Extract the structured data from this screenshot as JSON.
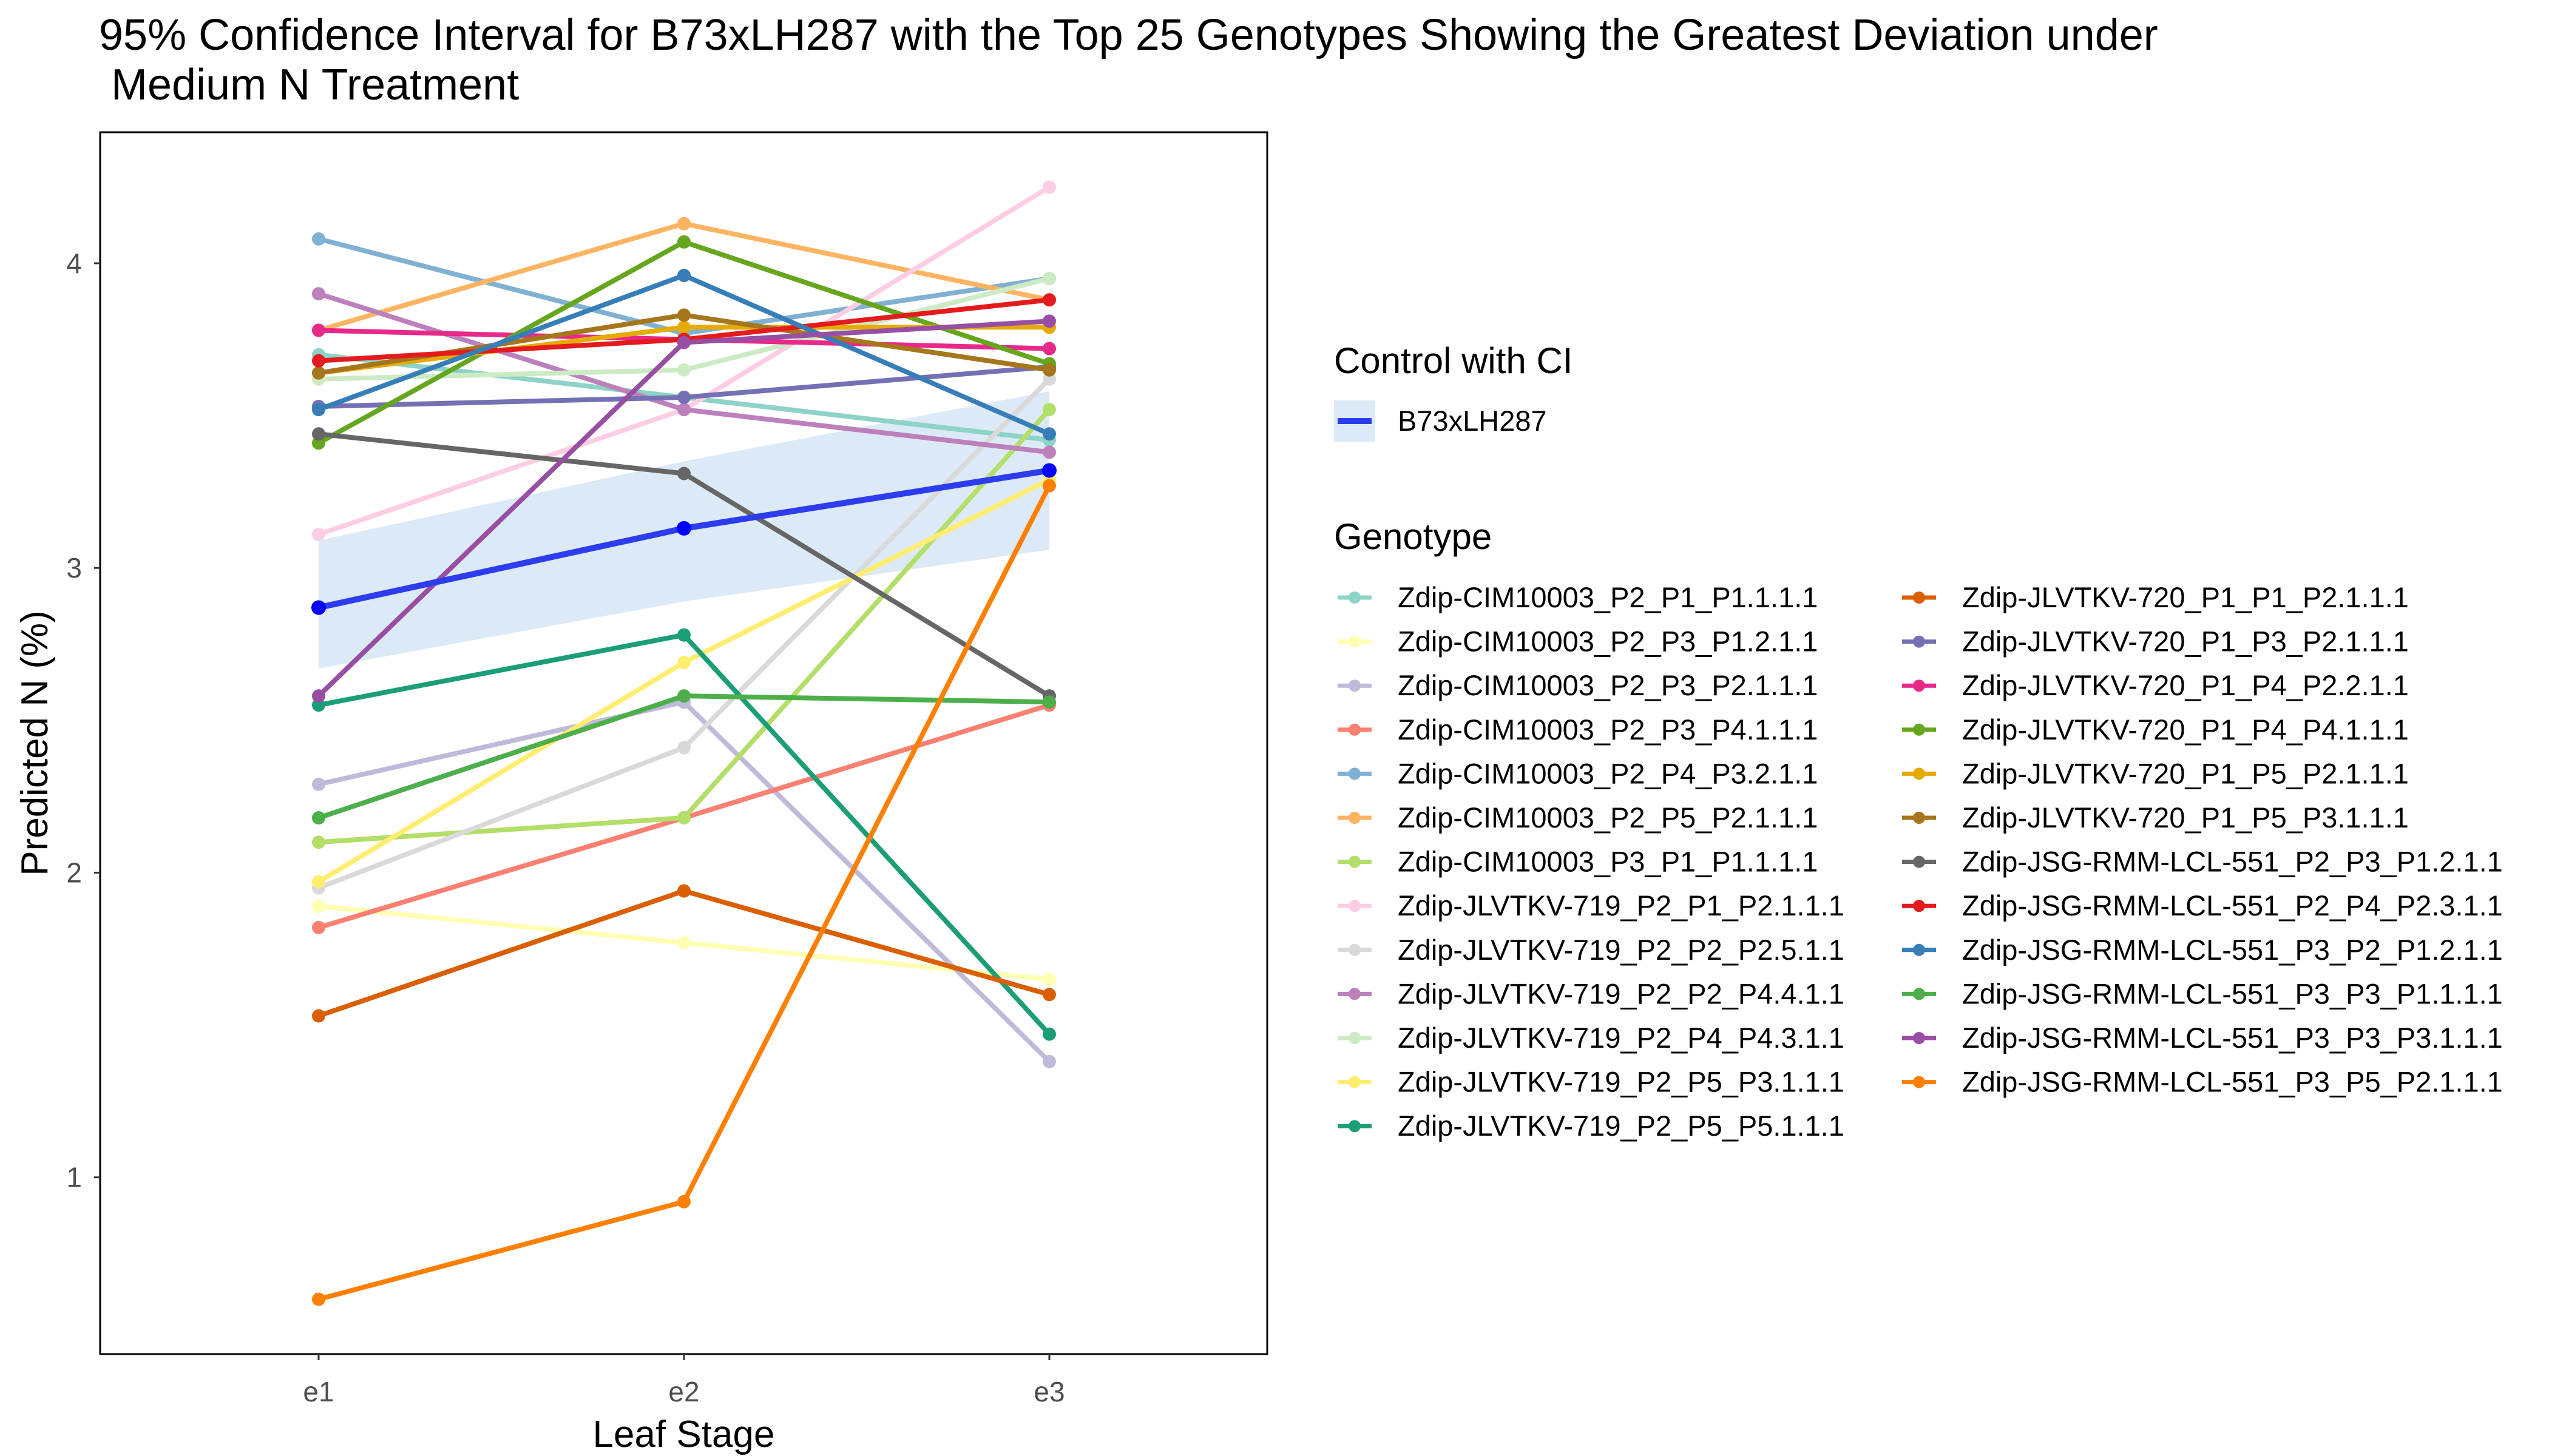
{
  "chart_data": {
    "type": "line",
    "title": "95% Confidence Interval for B73xLH287 with the Top 25 Genotypes Showing the Greatest Deviation under\n Medium N Treatment",
    "xlabel": "Leaf Stage",
    "ylabel": "Predicted N (%)",
    "categories": [
      "e1",
      "e2",
      "e3"
    ],
    "y_ticks": [
      1,
      2,
      3,
      4
    ],
    "ylim": [
      0.42,
      4.43
    ],
    "grid": false,
    "control": {
      "legend_title": "Control with CI",
      "name": "B73xLH287",
      "color": "#2E3CF0",
      "point_color": "#0000FF",
      "values": [
        2.87,
        3.13,
        3.32
      ],
      "ci_lower": [
        2.67,
        2.89,
        3.06
      ],
      "ci_upper": [
        3.09,
        3.35,
        3.58
      ],
      "ci_color": "#DCEAF7"
    },
    "legend_title": "Genotype",
    "series": [
      {
        "name": "Zdip-CIM10003_P2_P1_P1.1.1.1",
        "color": "#8DD3C7",
        "values": [
          3.7,
          3.56,
          3.42
        ]
      },
      {
        "name": "Zdip-CIM10003_P2_P3_P1.2.1.1",
        "color": "#FFFFB3",
        "values": [
          1.89,
          1.77,
          1.65
        ]
      },
      {
        "name": "Zdip-CIM10003_P2_P3_P2.1.1.1",
        "color": "#BEBADA",
        "values": [
          2.29,
          2.56,
          1.38
        ]
      },
      {
        "name": "Zdip-CIM10003_P2_P3_P4.1.1.1",
        "color": "#FB8072",
        "values": [
          1.82,
          2.18,
          2.55
        ]
      },
      {
        "name": "Zdip-CIM10003_P2_P4_P3.2.1.1",
        "color": "#80B1D3",
        "values": [
          4.08,
          3.77,
          3.95
        ]
      },
      {
        "name": "Zdip-CIM10003_P2_P5_P2.1.1.1",
        "color": "#FDB462",
        "values": [
          3.78,
          4.13,
          3.88
        ]
      },
      {
        "name": "Zdip-CIM10003_P3_P1_P1.1.1.1",
        "color": "#B3DE69",
        "values": [
          2.1,
          2.18,
          3.52
        ]
      },
      {
        "name": "Zdip-JLVTKV-719_P2_P1_P2.1.1.1",
        "color": "#FCCDE5",
        "values": [
          3.11,
          3.52,
          4.25
        ]
      },
      {
        "name": "Zdip-JLVTKV-719_P2_P2_P2.5.1.1",
        "color": "#D9D9D9",
        "values": [
          1.95,
          2.41,
          3.62
        ]
      },
      {
        "name": "Zdip-JLVTKV-719_P2_P2_P4.4.1.1",
        "color": "#BC80BD",
        "values": [
          3.9,
          3.52,
          3.38
        ]
      },
      {
        "name": "Zdip-JLVTKV-719_P2_P4_P4.3.1.1",
        "color": "#CCEBC5",
        "values": [
          3.62,
          3.65,
          3.95
        ]
      },
      {
        "name": "Zdip-JLVTKV-719_P2_P5_P3.1.1.1",
        "color": "#FFED6F",
        "values": [
          1.97,
          2.69,
          3.29
        ]
      },
      {
        "name": "Zdip-JLVTKV-719_P2_P5_P5.1.1.1",
        "color": "#1B9E77",
        "values": [
          2.55,
          2.78,
          1.47
        ]
      },
      {
        "name": "Zdip-JLVTKV-720_P1_P1_P2.1.1.1",
        "color": "#D95F02",
        "values": [
          1.53,
          1.94,
          1.6
        ]
      },
      {
        "name": "Zdip-JLVTKV-720_P1_P3_P2.1.1.1",
        "color": "#7570B3",
        "values": [
          3.53,
          3.56,
          3.66
        ]
      },
      {
        "name": "Zdip-JLVTKV-720_P1_P4_P2.2.1.1",
        "color": "#E7298A",
        "values": [
          3.78,
          3.75,
          3.72
        ]
      },
      {
        "name": "Zdip-JLVTKV-720_P1_P4_P4.1.1.1",
        "color": "#66A61E",
        "values": [
          3.41,
          4.07,
          3.67
        ]
      },
      {
        "name": "Zdip-JLVTKV-720_P1_P5_P2.1.1.1",
        "color": "#E6AB02",
        "values": [
          3.64,
          3.79,
          3.79
        ]
      },
      {
        "name": "Zdip-JLVTKV-720_P1_P5_P3.1.1.1",
        "color": "#A6761D",
        "values": [
          3.64,
          3.83,
          3.65
        ]
      },
      {
        "name": "Zdip-JSG-RMM-LCL-551_P2_P3_P1.2.1.1",
        "color": "#666666",
        "values": [
          3.44,
          3.31,
          2.58
        ]
      },
      {
        "name": "Zdip-JSG-RMM-LCL-551_P2_P4_P2.3.1.1",
        "color": "#E41A1C",
        "values": [
          3.68,
          3.75,
          3.88
        ]
      },
      {
        "name": "Zdip-JSG-RMM-LCL-551_P3_P2_P1.2.1.1",
        "color": "#377EB8",
        "values": [
          3.52,
          3.96,
          3.44
        ]
      },
      {
        "name": "Zdip-JSG-RMM-LCL-551_P3_P3_P1.1.1.1",
        "color": "#4DAF4A",
        "values": [
          2.18,
          2.58,
          2.56
        ]
      },
      {
        "name": "Zdip-JSG-RMM-LCL-551_P3_P3_P3.1.1.1",
        "color": "#984EA3",
        "values": [
          2.58,
          3.74,
          3.81
        ]
      },
      {
        "name": "Zdip-JSG-RMM-LCL-551_P3_P5_P2.1.1.1",
        "color": "#FF7F00",
        "values": [
          0.6,
          0.92,
          3.27
        ]
      }
    ]
  }
}
